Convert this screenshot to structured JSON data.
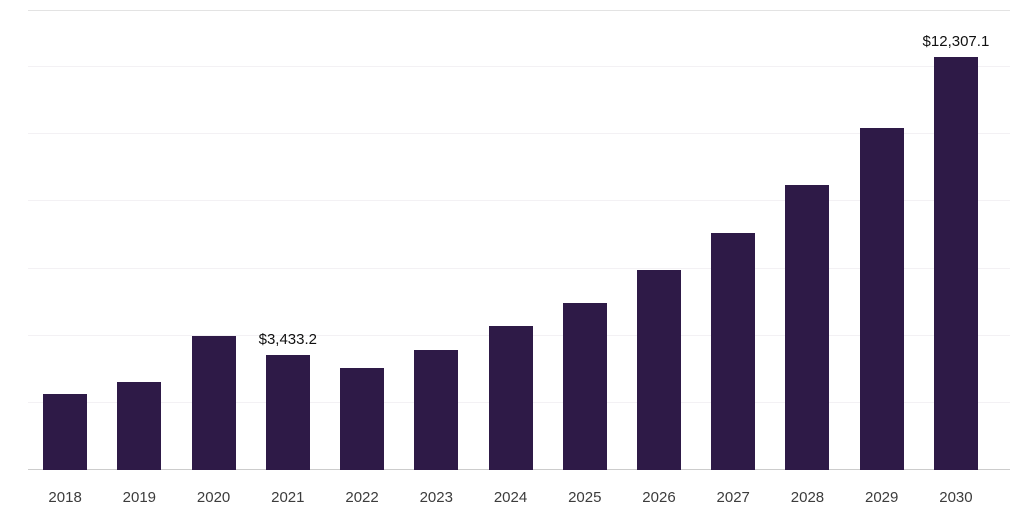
{
  "chart_data": {
    "type": "bar",
    "title": "",
    "xlabel": "",
    "ylabel": "",
    "legend": "none",
    "categories": [
      "2018",
      "2019",
      "2020",
      "2021",
      "2022",
      "2023",
      "2024",
      "2025",
      "2026",
      "2027",
      "2028",
      "2029",
      "2030"
    ],
    "values": [
      2250,
      2620,
      3980,
      3433.2,
      3050,
      3560,
      4280,
      4980,
      5950,
      7050,
      8500,
      10200,
      12307.1
    ],
    "data_labels": {
      "2021": "$3,433.2",
      "2030": "$12,307.1"
    },
    "ylim": [
      0,
      13700
    ],
    "gridlines": [
      2000,
      4000,
      6000,
      8000,
      10000,
      12000
    ],
    "grid_on": true,
    "bar_color": "#2e1a47",
    "gridline_color": "#f3f1f4",
    "axis_line_color": "#cccccc",
    "background_color": "#ffffff"
  }
}
